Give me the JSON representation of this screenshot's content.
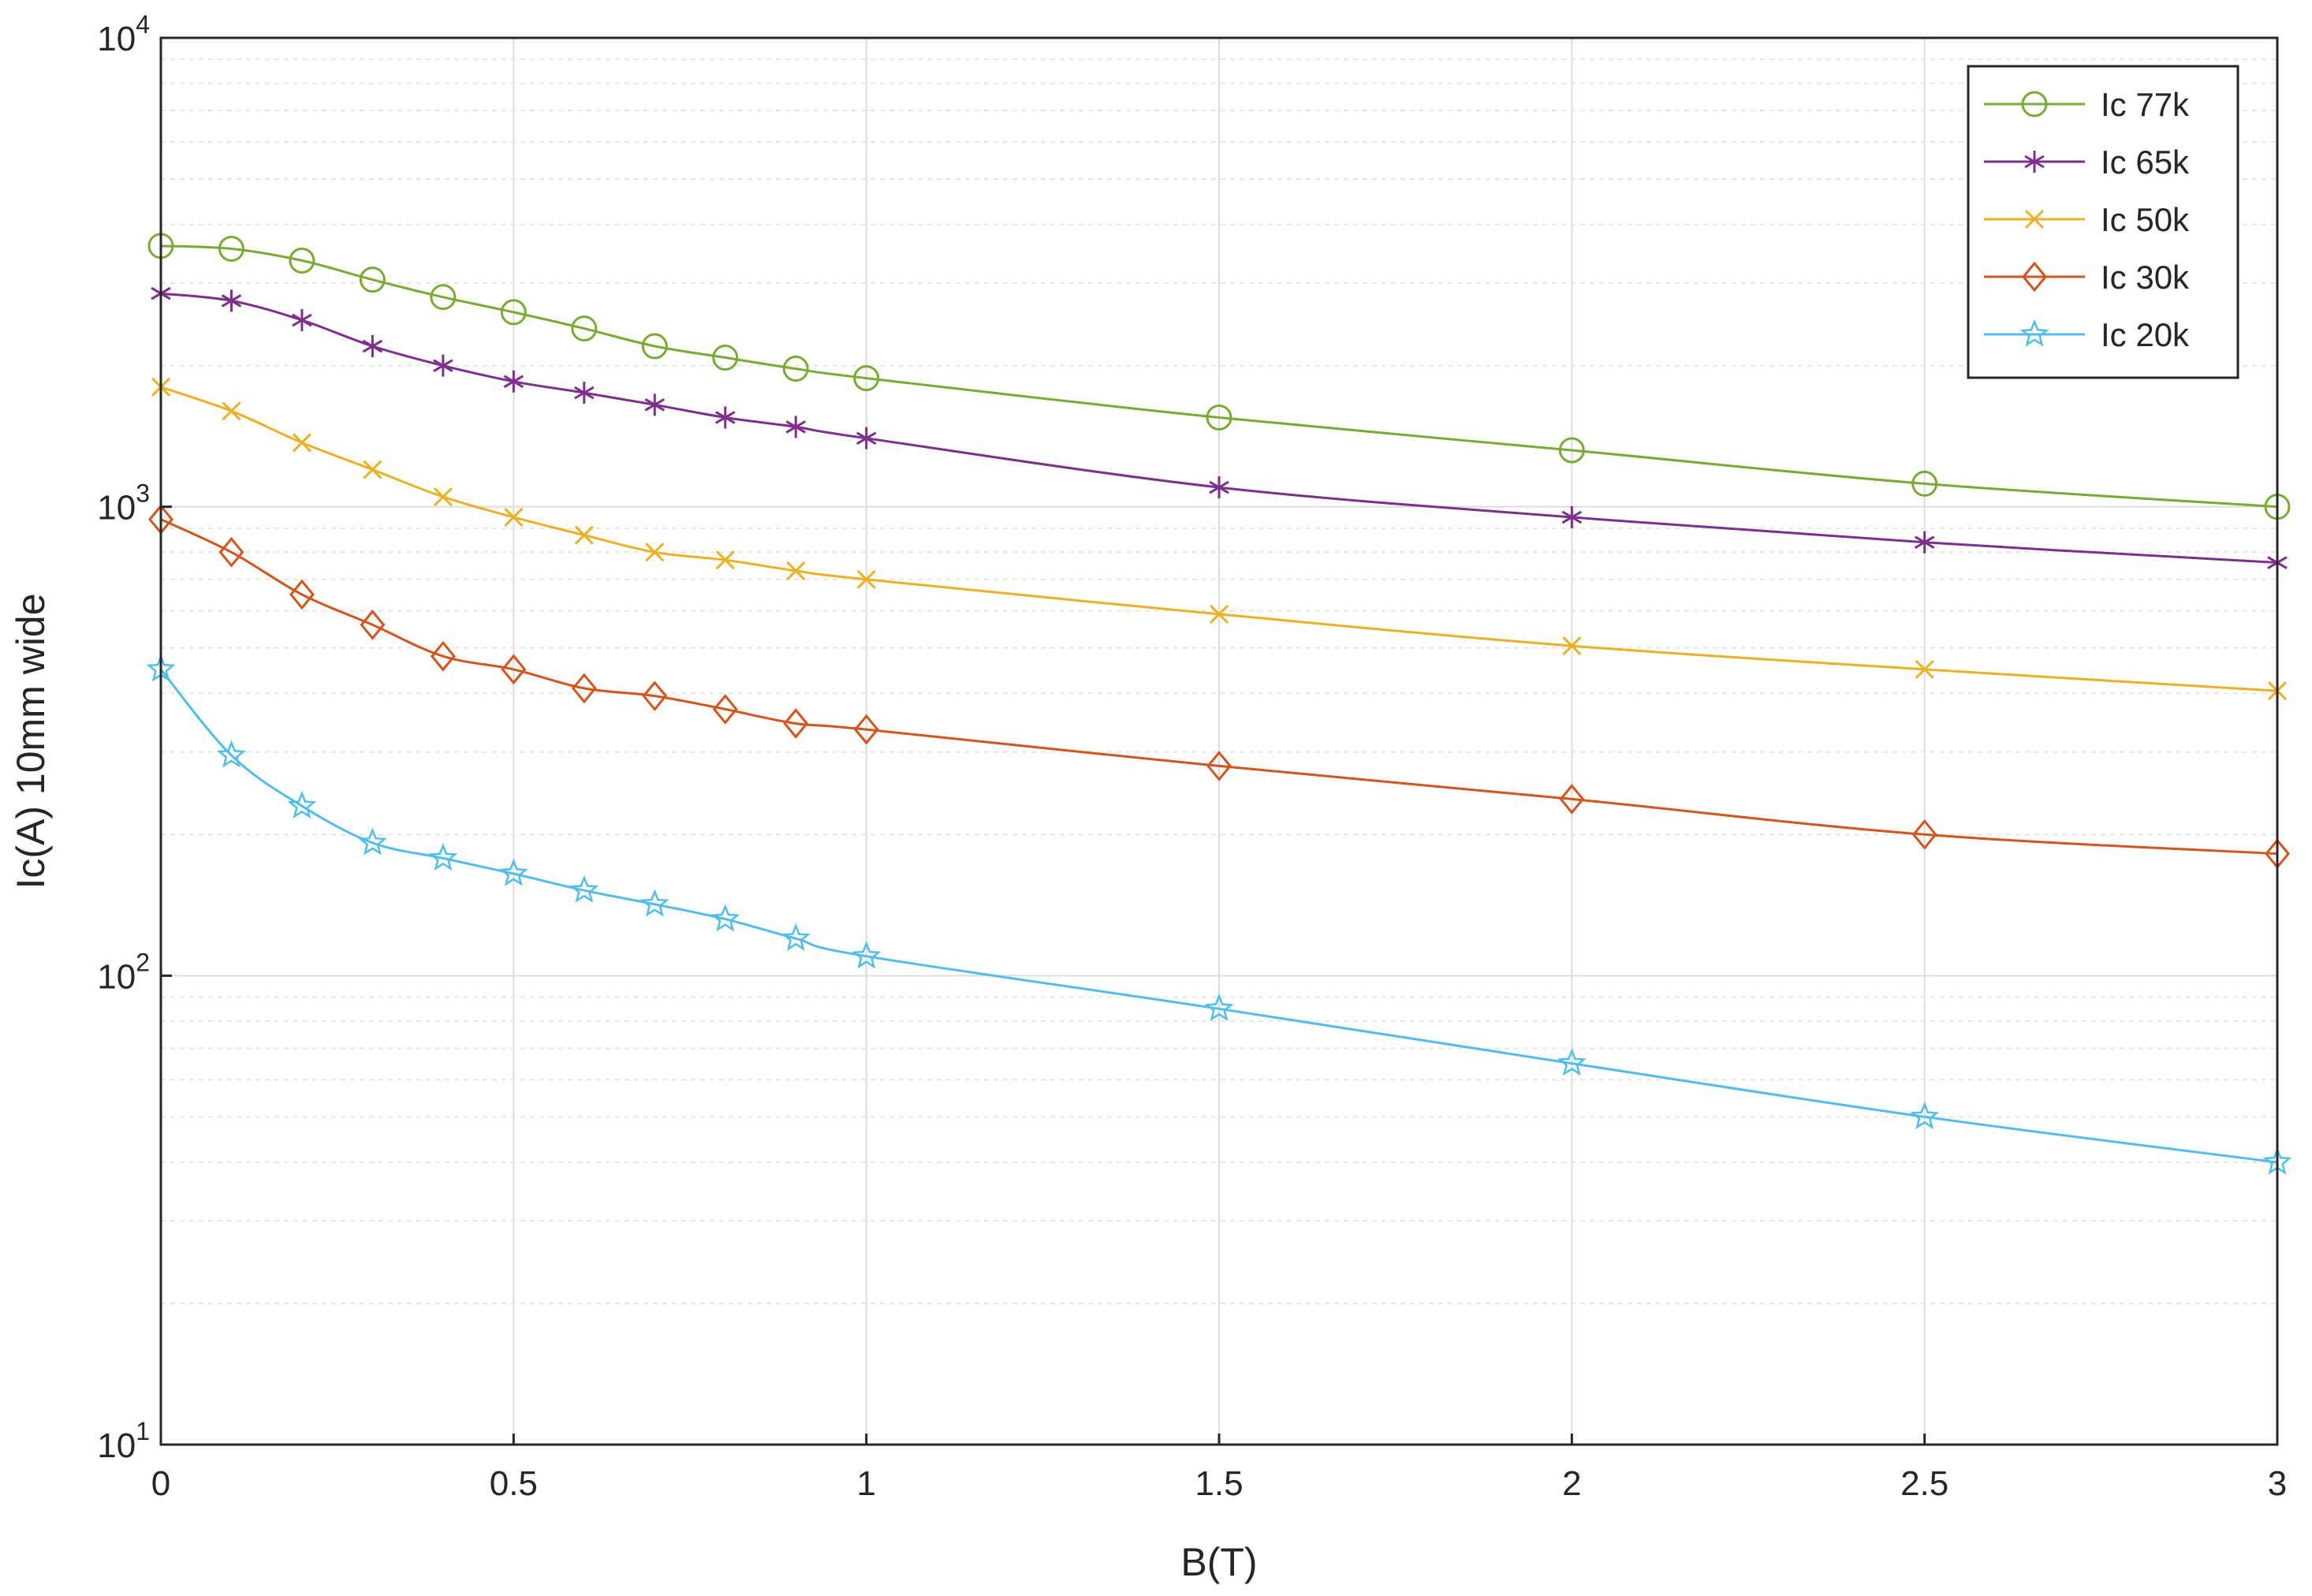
{
  "chart_data": {
    "type": "line",
    "title": "",
    "xlabel": "B(T)",
    "ylabel": "Ic(A) 10mm wide",
    "xlim": [
      0,
      3
    ],
    "ylim": [
      10,
      10000
    ],
    "yscale": "log",
    "grid": true,
    "legend_position": "top-right",
    "x_ticks": [
      "0",
      "0.5",
      "1",
      "1.5",
      "2",
      "2.5",
      "3"
    ],
    "y_ticks": [
      {
        "base": "10",
        "exp": "1"
      },
      {
        "base": "10",
        "exp": "2"
      },
      {
        "base": "10",
        "exp": "3"
      },
      {
        "base": "10",
        "exp": "4"
      }
    ],
    "x": [
      0,
      0.1,
      0.2,
      0.3,
      0.4,
      0.5,
      0.6,
      0.7,
      0.8,
      0.9,
      1,
      1.5,
      2,
      2.5,
      3
    ],
    "series": [
      {
        "name": "Ic 77k",
        "color": "#77ac30",
        "marker": "circle",
        "values": [
          3600,
          3550,
          3350,
          3050,
          2800,
          2600,
          2400,
          2200,
          2080,
          1970,
          1880,
          1550,
          1320,
          1120,
          1000
        ]
      },
      {
        "name": "Ic 65k",
        "color": "#7e2f8e",
        "marker": "asterisk",
        "values": [
          2850,
          2750,
          2500,
          2200,
          2000,
          1850,
          1750,
          1650,
          1550,
          1480,
          1400,
          1100,
          950,
          840,
          760
        ]
      },
      {
        "name": "Ic 50k",
        "color": "#edb120",
        "marker": "x",
        "values": [
          1800,
          1600,
          1370,
          1200,
          1050,
          950,
          870,
          800,
          770,
          730,
          700,
          590,
          505,
          450,
          405
        ]
      },
      {
        "name": "Ic 30k",
        "color": "#d95319",
        "marker": "diamond",
        "values": [
          940,
          800,
          650,
          560,
          480,
          450,
          410,
          395,
          370,
          345,
          335,
          280,
          238,
          200,
          182
        ]
      },
      {
        "name": "Ic 20k",
        "color": "#4dbeee",
        "marker": "star",
        "values": [
          450,
          295,
          230,
          192,
          178,
          165,
          152,
          142,
          132,
          120,
          110,
          85,
          65,
          50,
          40
        ]
      }
    ]
  }
}
